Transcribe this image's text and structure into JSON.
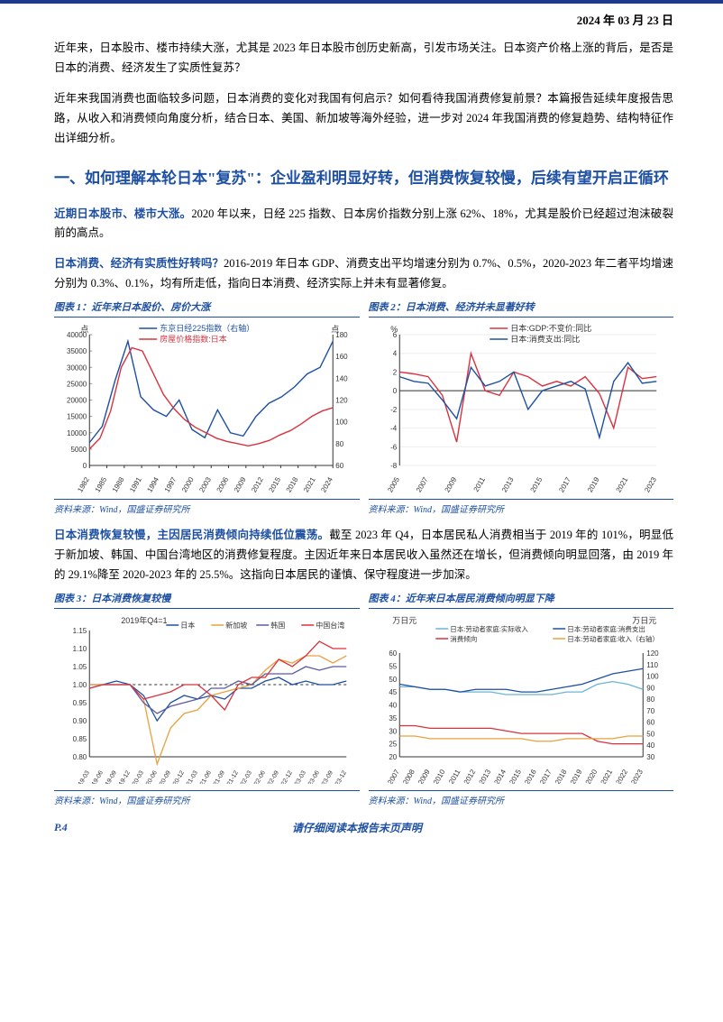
{
  "header": {
    "date": "2024 年 03 月 23 日"
  },
  "watermark": "",
  "paragraphs": {
    "p1": "近年来，日本股市、楼市持续大涨，尤其是 2023 年日本股市创历史新高，引发市场关注。日本资产价格上涨的背后，是否是日本的消费、经济发生了实质性复苏？",
    "p2": "近年来我国消费也面临较多问题，日本消费的变化对我国有何启示？如何看待我国消费修复前景？本篇报告延续年度报告思路，从收入和消费倾向角度分析，结合日本、美国、新加坡等海外经验，进一步对 2024 年我国消费的修复趋势、结构特征作出详细分析。"
  },
  "section_title": "一、如何理解本轮日本\"复苏\"：企业盈利明显好转，但消费恢复较慢，后续有望开启正循环",
  "highlight1": {
    "lead": "近期日本股市、楼市大涨。",
    "body": "2020 年以来，日经 225 指数、日本房价指数分别上涨 62%、18%，尤其是股价已经超过泡沫破裂前的高点。"
  },
  "highlight2": {
    "lead": "日本消费、经济有实质性好转吗？",
    "body": "2016-2019 年日本 GDP、消费支出平均增速分别为 0.7%、0.5%，2020-2023 年二者平均增速分别为 0.3%、0.1%，均有所走低，指向日本消费、经济实际上并未有显著修复。"
  },
  "highlight3": {
    "lead": "日本消费恢复较慢，主因居民消费倾向持续低位震荡。",
    "body": "截至 2023 年 Q4，日本居民私人消费相当于 2019 年的 101%，明显低于新加坡、韩国、中国台湾地区的消费修复程度。主因近年来日本居民收入虽然还在增长，但消费倾向明显回落，由 2019 年的 29.1%降至 2020-2023 年的 25.5%。这指向日本居民的谨慎、保守程度进一步加深。"
  },
  "chart1": {
    "title": "图表 1：近年来日本股价、房价大涨",
    "unit_left": "点",
    "unit_right": "点",
    "legend": [
      "东京日经225指数（右轴）",
      "房屋价格指数:日本"
    ],
    "legend_colors": [
      "#1e50a2",
      "#d9333f"
    ],
    "x_years": [
      "1982",
      "1985",
      "1988",
      "1991",
      "1994",
      "1997",
      "2000",
      "2003",
      "2006",
      "2009",
      "2012",
      "2015",
      "2018",
      "2021",
      "2024"
    ],
    "left_axis": {
      "min": 0,
      "max": 40000,
      "step": 5000
    },
    "right_axis": {
      "min": 60,
      "max": 180,
      "step": 20
    },
    "nikkei": [
      7000,
      12000,
      26000,
      38000,
      21000,
      17000,
      15000,
      20000,
      11000,
      8500,
      17000,
      10000,
      9000,
      15000,
      19000,
      21000,
      24000,
      28000,
      30000,
      38000
    ],
    "house": [
      75,
      85,
      110,
      150,
      168,
      165,
      145,
      125,
      112,
      102,
      95,
      90,
      85,
      82,
      80,
      78,
      80,
      83,
      88,
      92,
      98,
      105,
      110,
      113
    ],
    "source": "资料来源：Wind，国盛证券研究所"
  },
  "chart2": {
    "title": "图表 2：日本消费、经济并未显著好转",
    "unit": "%",
    "legend": [
      "日本:GDP:不变价:同比",
      "日本:消费支出:同比"
    ],
    "legend_colors": [
      "#d9333f",
      "#1e50a2"
    ],
    "x_years": [
      "2005",
      "2007",
      "2009",
      "2011",
      "2013",
      "2015",
      "2017",
      "2019",
      "2021",
      "2023"
    ],
    "y_axis": {
      "min": -8,
      "max": 6,
      "step": 2
    },
    "gdp": [
      2,
      1.8,
      1.5,
      -0.5,
      -5.5,
      4,
      0,
      -0.5,
      2,
      1.5,
      0.5,
      1,
      0.5,
      1.5,
      -0.3,
      -4,
      2.5,
      1.3,
      1.5
    ],
    "cons": [
      1.5,
      1,
      0.8,
      -1,
      -3,
      2.5,
      0.5,
      1,
      2,
      -2,
      0,
      0.5,
      1,
      0.2,
      -5,
      1,
      3,
      0.8,
      1
    ],
    "source": "资料来源：Wind，国盛证券研究所"
  },
  "chart3": {
    "title": "图表 3：日本消费恢复较慢",
    "subtitle": "2019年Q4=1",
    "legend": [
      "日本",
      "新加坡",
      "韩国",
      "中国台湾"
    ],
    "legend_colors": [
      "#1e50a2",
      "#e8a23d",
      "#5b5b9f",
      "#d9333f"
    ],
    "x_labels": [
      "19-03",
      "19-06",
      "19-09",
      "19-12",
      "20-03",
      "20-06",
      "20-09",
      "20-12",
      "21-03",
      "21-06",
      "21-09",
      "21-12",
      "22-03",
      "22-06",
      "22-09",
      "22-12",
      "23-03",
      "23-06",
      "23-09",
      "23-12"
    ],
    "y_axis": {
      "min": 0.8,
      "max": 1.15,
      "step": 0.05
    },
    "japan": [
      1.0,
      1.0,
      1.01,
      1.0,
      0.97,
      0.9,
      0.95,
      0.97,
      0.96,
      0.97,
      0.96,
      0.99,
      0.99,
      1.01,
      1.02,
      1.0,
      1.01,
      1.0,
      1.0,
      1.01
    ],
    "singapore": [
      1.0,
      1.0,
      1.0,
      1.0,
      0.96,
      0.78,
      0.88,
      0.92,
      0.93,
      0.97,
      0.98,
      0.99,
      1.0,
      1.04,
      1.07,
      1.06,
      1.08,
      1.08,
      1.06,
      1.08
    ],
    "korea": [
      0.99,
      1.0,
      1.0,
      1.0,
      0.95,
      0.92,
      0.94,
      0.95,
      0.96,
      0.99,
      0.99,
      1.01,
      1.0,
      1.03,
      1.03,
      1.03,
      1.05,
      1.04,
      1.05,
      1.05
    ],
    "taiwan": [
      0.99,
      1.0,
      1.0,
      1.0,
      0.96,
      0.97,
      0.98,
      1.0,
      1.0,
      0.97,
      0.93,
      1.0,
      1.02,
      1.02,
      1.07,
      1.05,
      1.08,
      1.12,
      1.1,
      1.1
    ],
    "source": "资料来源：Wind，国盛证券研究所"
  },
  "chart4": {
    "title": "图表 4：近年来日本居民消费倾向明显下降",
    "unit_left": "万日元",
    "unit_right": "万日元",
    "legend": [
      "日本:劳动者家庭:实际收入",
      "日本:劳动者家庭:消费支出",
      "消费倾向",
      "日本:劳动者家庭:收入（右轴）"
    ],
    "legend_colors": [
      "#6bb4d6",
      "#1e50a2",
      "#d9333f",
      "#e8a23d"
    ],
    "x_years": [
      "2007",
      "2008",
      "2009",
      "2010",
      "2011",
      "2012",
      "2013",
      "2014",
      "2015",
      "2016",
      "2017",
      "2018",
      "2019",
      "2020",
      "2021",
      "2022",
      "2023"
    ],
    "left_axis": {
      "min": 20,
      "max": 60,
      "step": 5
    },
    "right_axis": {
      "min": 30,
      "max": 120,
      "step": 10
    },
    "real_income": [
      47,
      47,
      46,
      46,
      45,
      45,
      45,
      44,
      44,
      44,
      44,
      45,
      45,
      48,
      49,
      48,
      46
    ],
    "cons_exp": [
      48,
      47,
      46,
      46,
      45,
      46,
      46,
      46,
      45,
      45,
      46,
      47,
      48,
      50,
      52,
      53,
      54
    ],
    "cons_prop": [
      32,
      32,
      31,
      31,
      31,
      31,
      31,
      30,
      29,
      29,
      29,
      29,
      29,
      26,
      25,
      25,
      25
    ],
    "income_r": [
      28,
      28,
      27,
      27,
      27,
      27,
      27,
      27,
      27,
      26,
      26,
      27,
      27,
      27,
      27,
      28,
      28
    ],
    "source": "资料来源：Wind，国盛证券研究所"
  },
  "footer": {
    "page": "P.4",
    "disclaimer": "请仔细阅读本报告末页声明"
  }
}
